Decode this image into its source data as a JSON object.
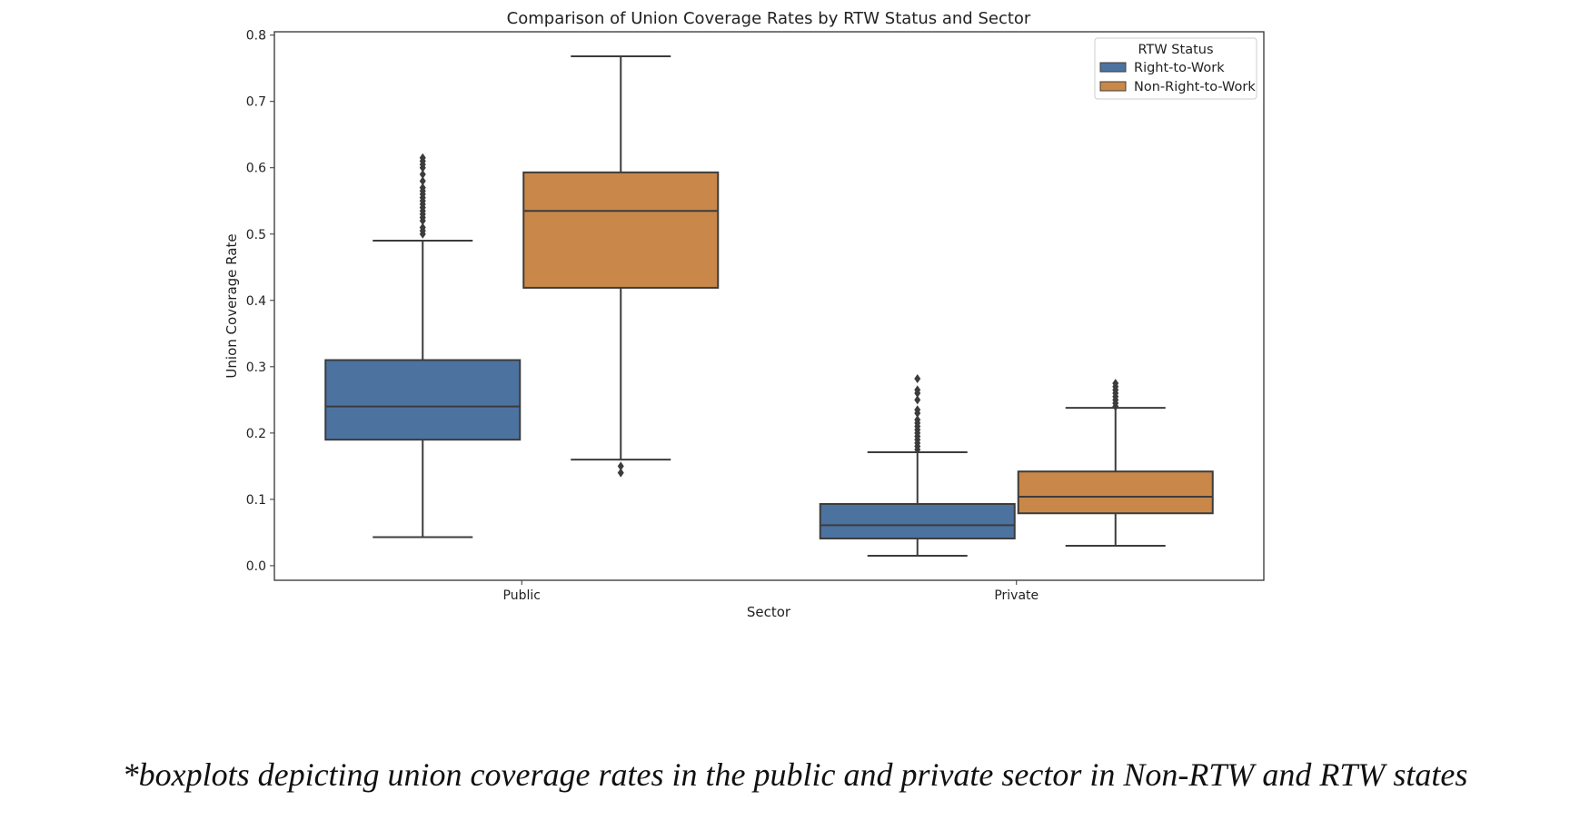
{
  "chart_data": {
    "type": "boxplot",
    "title": "Comparison of Union Coverage Rates by RTW Status and Sector",
    "xlabel": "Sector",
    "ylabel": "Union Coverage Rate",
    "categories": [
      "Public",
      "Private"
    ],
    "ylim": [
      -0.022,
      0.805
    ],
    "yticks": [
      0.0,
      0.1,
      0.2,
      0.3,
      0.4,
      0.5,
      0.6,
      0.7,
      0.8
    ],
    "ytick_labels": [
      "0.0",
      "0.1",
      "0.2",
      "0.3",
      "0.4",
      "0.5",
      "0.6",
      "0.7",
      "0.8"
    ],
    "grid": false,
    "legend": {
      "title": "RTW Status",
      "placement": "top-right"
    },
    "series": [
      {
        "name": "Right-to-Work",
        "color": "#4c72a0",
        "boxes": [
          {
            "category": "Public",
            "whisker_low": 0.043,
            "q1": 0.19,
            "median": 0.24,
            "q3": 0.31,
            "whisker_high": 0.49,
            "outliers": [
              0.5,
              0.505,
              0.51,
              0.52,
              0.525,
              0.53,
              0.535,
              0.54,
              0.545,
              0.55,
              0.555,
              0.56,
              0.565,
              0.57,
              0.58,
              0.59,
              0.6,
              0.605,
              0.61,
              0.615
            ]
          },
          {
            "category": "Private",
            "whisker_low": 0.015,
            "q1": 0.041,
            "median": 0.061,
            "q3": 0.093,
            "whisker_high": 0.171,
            "outliers": [
              0.175,
              0.18,
              0.185,
              0.19,
              0.195,
              0.2,
              0.205,
              0.21,
              0.215,
              0.22,
              0.23,
              0.235,
              0.25,
              0.26,
              0.265,
              0.282
            ]
          }
        ]
      },
      {
        "name": "Non-Right-to-Work",
        "color": "#c98849",
        "boxes": [
          {
            "category": "Public",
            "whisker_low": 0.16,
            "q1": 0.419,
            "median": 0.535,
            "q3": 0.593,
            "whisker_high": 0.768,
            "outliers": [
              0.14,
              0.15
            ]
          },
          {
            "category": "Private",
            "whisker_low": 0.03,
            "q1": 0.079,
            "median": 0.104,
            "q3": 0.142,
            "whisker_high": 0.238,
            "outliers": [
              0.24,
              0.245,
              0.25,
              0.255,
              0.26,
              0.265,
              0.27,
              0.275
            ]
          }
        ]
      }
    ]
  },
  "caption": "*boxplots depicting union coverage rates in the public and private sector in Non-RTW and RTW states"
}
